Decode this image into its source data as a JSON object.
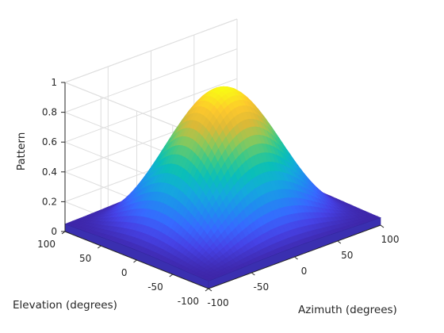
{
  "chart_data": {
    "type": "surface",
    "title": "",
    "xlabel": "Azimuth (degrees)",
    "ylabel": "Elevation (degrees)",
    "zlabel": "Pattern",
    "xlim": [
      -100,
      100
    ],
    "ylim": [
      -100,
      100
    ],
    "zlim": [
      0,
      1
    ],
    "xticks": [
      -100,
      -50,
      0,
      50,
      100
    ],
    "yticks": [
      -100,
      -50,
      0,
      50,
      100
    ],
    "zticks": [
      0,
      0.2,
      0.4,
      0.6,
      0.8,
      1
    ],
    "grid": true,
    "colormap": "parula",
    "peak": {
      "azimuth": 0,
      "elevation": 0,
      "value": 0.94
    },
    "edge_floor_value": 0.05,
    "pattern_samples": [
      {
        "azimuth": -100,
        "elevation": 0,
        "value": 0.07
      },
      {
        "azimuth": -50,
        "elevation": 0,
        "value": 0.55
      },
      {
        "azimuth": 0,
        "elevation": 0,
        "value": 0.94
      },
      {
        "azimuth": 50,
        "elevation": 0,
        "value": 0.55
      },
      {
        "azimuth": 100,
        "elevation": 0,
        "value": 0.07
      },
      {
        "azimuth": 0,
        "elevation": -50,
        "value": 0.55
      },
      {
        "azimuth": 0,
        "elevation": 50,
        "value": 0.55
      },
      {
        "azimuth": -100,
        "elevation": -100,
        "value": 0.05
      },
      {
        "azimuth": 100,
        "elevation": 100,
        "value": 0.05
      }
    ]
  }
}
